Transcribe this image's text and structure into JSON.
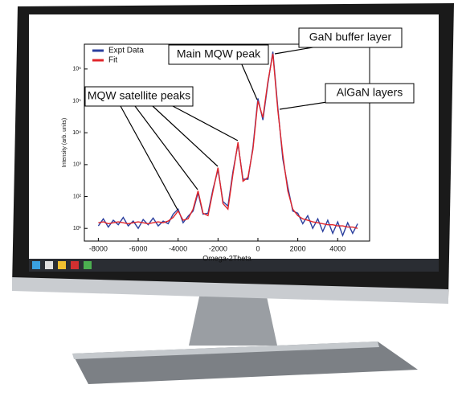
{
  "chart_data": {
    "type": "line",
    "xlabel": "Omega-2Theta",
    "ylabel": "Intensity (arb. units)",
    "log_y": true,
    "legend": "top-left",
    "xlim": [
      -8700,
      5600
    ],
    "xticks": [
      -8000,
      -6000,
      -4000,
      -2000,
      0,
      2000,
      4000
    ],
    "ylim": [
      4,
      6000000
    ],
    "yticks": [
      {
        "value": 10,
        "label": "10¹"
      },
      {
        "value": 100,
        "label": "10²"
      },
      {
        "value": 1000,
        "label": "10³"
      },
      {
        "value": 10000,
        "label": "10⁴"
      },
      {
        "value": 100000,
        "label": "10⁵"
      },
      {
        "value": 1000000,
        "label": "10⁶"
      }
    ],
    "x": [
      -8000,
      -7750,
      -7500,
      -7250,
      -7000,
      -6750,
      -6500,
      -6250,
      -6000,
      -5750,
      -5500,
      -5250,
      -5000,
      -4750,
      -4500,
      -4250,
      -4000,
      -3750,
      -3500,
      -3250,
      -3000,
      -2750,
      -2500,
      -2250,
      -2000,
      -1750,
      -1500,
      -1250,
      -1000,
      -750,
      -500,
      -250,
      0,
      250,
      500,
      750,
      1000,
      1250,
      1500,
      1750,
      2000,
      2250,
      2500,
      2750,
      3000,
      3250,
      3500,
      3750,
      4000,
      4250,
      4500,
      4750,
      5000
    ],
    "series": [
      {
        "name": "Expt Data",
        "color": "#2b3f9e",
        "values": [
          12,
          20,
          11,
          18,
          13,
          22,
          12,
          17,
          10,
          19,
          13,
          21,
          12,
          17,
          14,
          28,
          40,
          15,
          24,
          35,
          130,
          28,
          30,
          170,
          700,
          70,
          50,
          600,
          4500,
          350,
          350,
          3500,
          120000,
          25000,
          350000,
          3500000,
          60000,
          1500,
          200,
          35,
          30,
          14,
          25,
          10,
          20,
          8,
          18,
          7,
          16,
          6,
          15,
          7,
          14
        ]
      },
      {
        "name": "Fit",
        "color": "#e0252b",
        "values": [
          15,
          16,
          14,
          15,
          16,
          15,
          14,
          15,
          16,
          15,
          14,
          15,
          16,
          15,
          17,
          22,
          35,
          18,
          20,
          40,
          150,
          30,
          25,
          150,
          800,
          60,
          40,
          500,
          5000,
          300,
          400,
          3000,
          100000,
          30000,
          400000,
          3000000,
          50000,
          2000,
          150,
          40,
          25,
          20,
          18,
          16,
          15,
          14,
          13,
          13,
          12,
          12,
          11,
          11,
          10
        ]
      }
    ],
    "annotations": [
      "GaN buffer layer",
      "Main MQW peak",
      "AlGaN layers",
      "MQW satellite peaks"
    ]
  }
}
